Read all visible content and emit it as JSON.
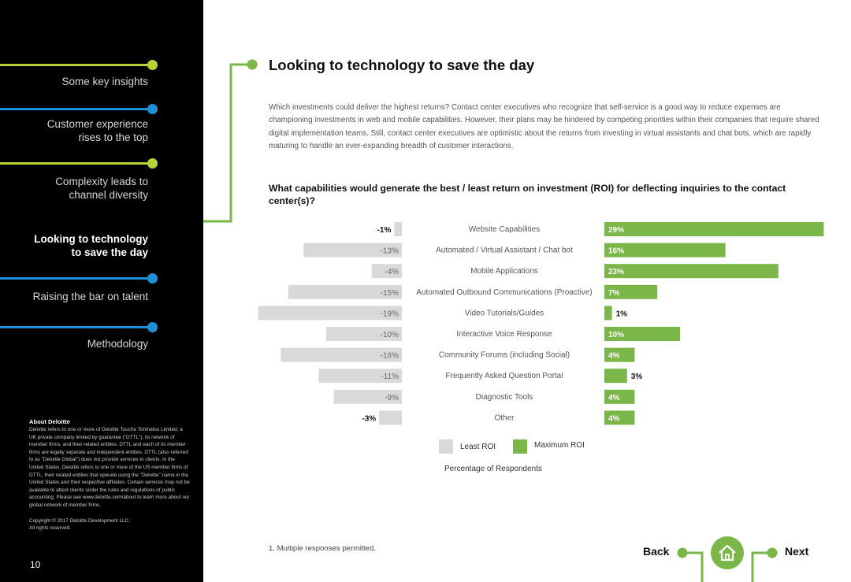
{
  "sidebar": {
    "items": [
      {
        "label": "Some key insights",
        "color": "#b5d334",
        "active": false
      },
      {
        "label": "Customer experience\nrises to the top",
        "color": "#1e90d8",
        "active": false
      },
      {
        "label": "Complexity leads to\nchannel diversity",
        "color": "#b5d334",
        "active": false
      },
      {
        "label": "Looking to technology\nto save the day",
        "color": "#7ab648",
        "active": true
      },
      {
        "label": "Raising the bar on talent",
        "color": "#1e90d8",
        "active": false
      },
      {
        "label": "Methodology",
        "color": "#1e90d8",
        "active": false
      }
    ],
    "about": {
      "title": "About Deloitte",
      "body": "Deloitte refers to one or more of Deloitte Touche Tohmatsu Limited, a UK private company limited by guarantee (\"DTTL\"), its network of member firms, and their related entities. DTTL and each of its member firms are legally separate and independent entities. DTTL (also referred to as \"Deloitte Global\") does not provide services to clients. In the United States, Deloitte refers to one or more of the US member firms of DTTL, their related entities that operate using the \"Deloitte\" name in the United States and their respective affiliates. Certain services may not be available to attest clients under the rules and regulations of public accounting. Please see www.deloitte.com/about to learn more about our global network of member firms.",
      "copyright": "Copyright © 2017 Deloitte Development LLC.\nAll rights reserved."
    },
    "page_number": "10"
  },
  "main": {
    "title": "Looking to technology to save the day",
    "intro": "Which investments could deliver the highest returns? Contact center executives who recognize that self-service is a good way to reduce expenses are championing investments in web and mobile capabilities. However, their plans may be hindered by competing priorities within their companies that require shared digital implementation teams. Still, contact center executives are optimistic about the returns from investing in virtual assistants and chat bots, which are rapidly maturing to handle an ever-expanding breadth of customer interactions.",
    "question": "What capabilities would generate the best / least return on investment (ROI) for deflecting inquiries to the contact center(s)?",
    "footnote": "1. Multiple responses permitted."
  },
  "chart_data": {
    "type": "bar",
    "categories": [
      "Website Capabilities",
      "Automated / Virtual Assistant / Chat bot",
      "Mobile Applications",
      "Automated Outbound Communications (Proactive)",
      "Video Tutorials/Guides",
      "Interactive Voice Response",
      "Community Forums (including Social)",
      "Frequently Asked Question Portal",
      "Diagnostic Tools",
      "Other"
    ],
    "series": [
      {
        "name": "Least ROI",
        "color": "#d9d9dc",
        "values": [
          -1,
          -13,
          -4,
          -15,
          -19,
          -10,
          -16,
          -11,
          -9,
          -3
        ],
        "labels": [
          "-1%",
          "-13%",
          "-4%",
          "-15%",
          "-19%",
          "-10%",
          "-16%",
          "-11%",
          "-9%",
          "-3%"
        ]
      },
      {
        "name": "Maximum ROI",
        "color": "#7ab648",
        "values": [
          29,
          16,
          23,
          7,
          1,
          10,
          4,
          3,
          4,
          4
        ],
        "labels": [
          "29%",
          "16%",
          "23%",
          "7%",
          "1%",
          "10%",
          "4%",
          "3%",
          "4%",
          "4%"
        ]
      }
    ],
    "legend_note": "Percentage of Respondents"
  },
  "footer": {
    "back_label": "Back",
    "next_label": "Next",
    "home_icon": "home-icon",
    "accent": "#7ab648"
  }
}
